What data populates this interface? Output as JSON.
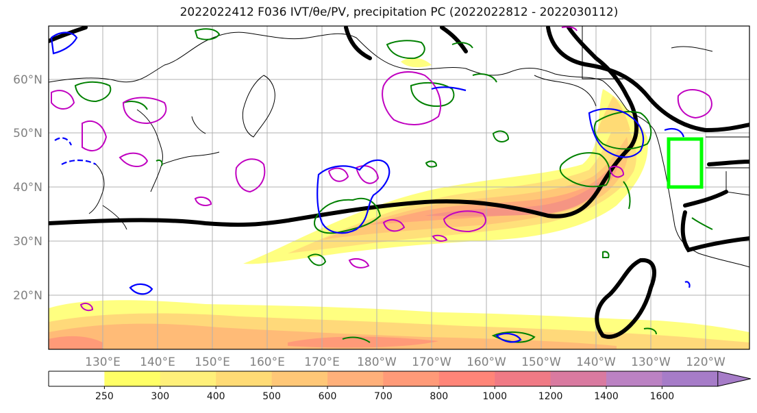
{
  "title": "2022022412 F036 IVT/θe/PV, precipitation PC (2022022812 - 2022030112)",
  "map": {
    "lat_labels": [
      "60°N",
      "50°N",
      "40°N",
      "30°N",
      "20°N"
    ],
    "lon_labels": [
      "130°E",
      "140°E",
      "150°E",
      "160°E",
      "170°E",
      "180°W",
      "170°W",
      "160°W",
      "150°W",
      "140°W",
      "130°W",
      "120°W"
    ]
  },
  "colorbar": {
    "ticks": [
      "250",
      "300",
      "400",
      "500",
      "600",
      "700",
      "800",
      "1000",
      "1200",
      "1400",
      "1600"
    ],
    "colors": [
      "#ffffff",
      "#ffff66",
      "#fff07a",
      "#ffdb75",
      "#ffc777",
      "#ffb07a",
      "#ff9a78",
      "#ff8578",
      "#f07a85",
      "#d97aa0",
      "#bb82c3",
      "#a67cc8",
      "#a67cc8"
    ]
  },
  "colors": {
    "ivt_contour": "#000000",
    "theta_e": "#008000",
    "pv_positive": "#c000c0",
    "pv_negative": "#0000ff",
    "target_box": "#00ff00"
  }
}
